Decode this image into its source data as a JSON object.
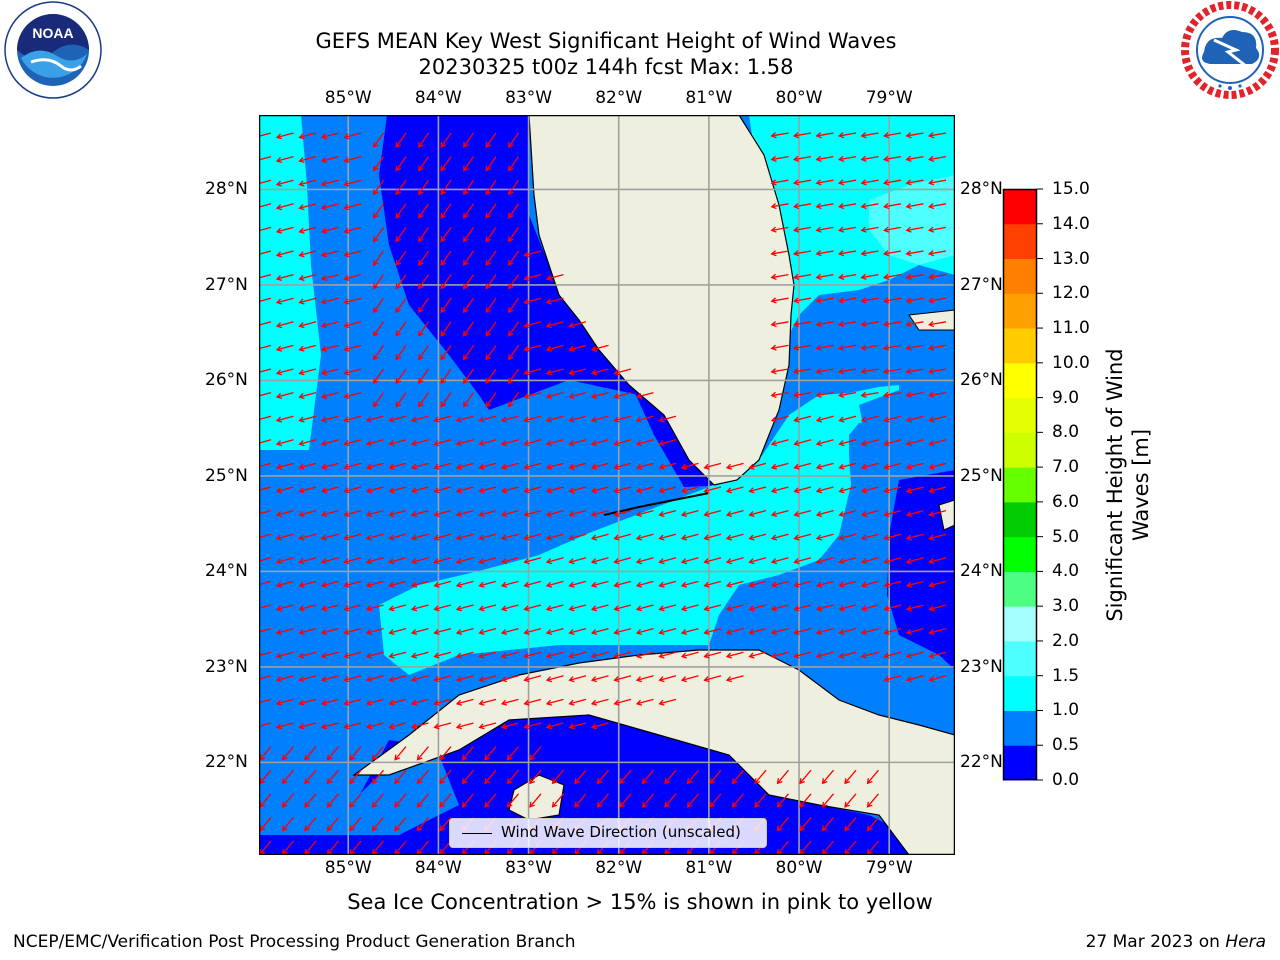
{
  "title_line1": "GEFS MEAN Key West Significant Height of Wind Waves",
  "title_line2": "20230325 t00z 144h fcst   Max: 1.58",
  "logos": {
    "left": {
      "icon": "noaa-logo",
      "text": "NOAA",
      "ring_text": "NATIONAL OCEANIC AND ATMOSPHERIC ADMINISTRATION · U.S. DEPARTMENT OF COMMERCE"
    },
    "right": {
      "icon": "nws-logo",
      "ring_text": "NATIONAL WEATHER SERVICE"
    }
  },
  "map": {
    "lon_labels": [
      "85°W",
      "84°W",
      "83°W",
      "82°W",
      "81°W",
      "80°W",
      "79°W"
    ],
    "lat_labels": [
      "28°N",
      "27°N",
      "26°N",
      "25°N",
      "24°N",
      "23°N",
      "22°N"
    ],
    "extent": {
      "lon_min": -85.99,
      "lon_max": -78.27,
      "lat_min": 21.03,
      "lat_max": 28.78
    },
    "gridlines": true,
    "arrow_color": "#ff0000",
    "arrow_direction": "predominantly westward, turning southwest in the eastern Gulf and north of Cuba",
    "land_color": "#efefdf",
    "coastline_color": "#000000"
  },
  "colorbar": {
    "title_line1": "Significant Height of Wind",
    "title_line2": "Waves [m]",
    "ticks": [
      "0.0",
      "0.5",
      "1.0",
      "1.5",
      "2.0",
      "3.0",
      "4.0",
      "5.0",
      "6.0",
      "7.0",
      "8.0",
      "9.0",
      "10.0",
      "11.0",
      "12.0",
      "13.0",
      "14.0",
      "15.0"
    ],
    "bins": [
      {
        "from": 0.0,
        "to": 0.5,
        "color": "#0000ff"
      },
      {
        "from": 0.5,
        "to": 1.0,
        "color": "#0080ff"
      },
      {
        "from": 1.0,
        "to": 1.5,
        "color": "#00ffff"
      },
      {
        "from": 1.5,
        "to": 2.0,
        "color": "#4dffff"
      },
      {
        "from": 2.0,
        "to": 3.0,
        "color": "#a6ffff"
      },
      {
        "from": 3.0,
        "to": 4.0,
        "color": "#4dff80"
      },
      {
        "from": 4.0,
        "to": 5.0,
        "color": "#00ff00"
      },
      {
        "from": 5.0,
        "to": 6.0,
        "color": "#00cc00"
      },
      {
        "from": 6.0,
        "to": 7.0,
        "color": "#66ff00"
      },
      {
        "from": 7.0,
        "to": 8.0,
        "color": "#ccff00"
      },
      {
        "from": 8.0,
        "to": 9.0,
        "color": "#e6ff00"
      },
      {
        "from": 9.0,
        "to": 10.0,
        "color": "#ffff00"
      },
      {
        "from": 10.0,
        "to": 11.0,
        "color": "#ffcc00"
      },
      {
        "from": 11.0,
        "to": 12.0,
        "color": "#ffa000"
      },
      {
        "from": 12.0,
        "to": 13.0,
        "color": "#ff8000"
      },
      {
        "from": 13.0,
        "to": 14.0,
        "color": "#ff4000"
      },
      {
        "from": 14.0,
        "to": 15.0,
        "color": "#ff0000"
      }
    ]
  },
  "legend_label": "Wind Wave Direction (unscaled)",
  "note": "Sea Ice Concentration > 15% is shown in pink to yellow",
  "footer_left": "NCEP/EMC/Verification Post Processing Product Generation Branch",
  "footer_right_prefix": "27 Mar 2023 on ",
  "footer_right_host": "Hera"
}
